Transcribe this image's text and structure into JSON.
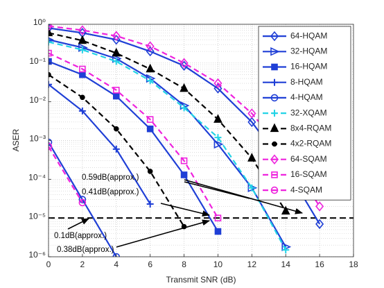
{
  "chart_data": {
    "type": "line",
    "x_label": "Transmit SNR (dB)",
    "y_label": "ASER",
    "log_y": true,
    "grid": true,
    "legend": "upper right",
    "x": [
      0,
      2,
      4,
      6,
      8,
      10,
      12,
      14,
      16
    ],
    "xlim": [
      0,
      18
    ],
    "xticks": [
      0,
      2,
      4,
      6,
      8,
      10,
      12,
      14,
      16,
      18
    ],
    "ylim": [
      1e-06,
      1
    ],
    "yticks": [
      {
        "value": 1e-06,
        "label": "10⁻⁶"
      },
      {
        "value": 1e-05,
        "label": "10⁻⁵"
      },
      {
        "value": 0.0001,
        "label": "10⁻⁴"
      },
      {
        "value": 0.001,
        "label": "10⁻³"
      },
      {
        "value": 0.01,
        "label": "10⁻²"
      },
      {
        "value": 0.1,
        "label": "10⁻¹"
      },
      {
        "value": 1,
        "label": "10⁰"
      }
    ],
    "reference_line": 1e-05,
    "series": [
      {
        "name": "64-HQAM",
        "color": "#1f3fd6",
        "dash": "solid",
        "marker": "diamond",
        "filled": false,
        "values": [
          0.8,
          0.6,
          0.4,
          0.2,
          0.085,
          0.022,
          0.003,
          0.0002,
          7e-06
        ]
      },
      {
        "name": "32-HQAM",
        "color": "#1f3fd6",
        "dash": "solid",
        "marker": "triangle-right",
        "filled": false,
        "values": [
          0.4,
          0.25,
          0.13,
          0.04,
          0.008,
          0.0008,
          6e-05,
          1.8e-06,
          null
        ]
      },
      {
        "name": "16-HQAM",
        "color": "#1f3fd6",
        "dash": "solid",
        "marker": "square",
        "filled": true,
        "values": [
          0.11,
          0.05,
          0.014,
          0.002,
          0.00013,
          4.5e-06,
          null,
          null,
          null
        ]
      },
      {
        "name": "8-HQAM",
        "color": "#1f3fd6",
        "dash": "solid",
        "marker": "plus",
        "filled": false,
        "values": [
          0.028,
          0.0058,
          0.0006,
          2.3e-05,
          null,
          null,
          null,
          null,
          null
        ]
      },
      {
        "name": "4-HQAM",
        "color": "#1f3fd6",
        "dash": "solid",
        "marker": "circle",
        "filled": false,
        "values": [
          0.0009,
          3e-05,
          1e-06,
          null,
          null,
          null,
          null,
          null,
          null
        ]
      },
      {
        "name": "32-XQAM",
        "color": "#22d3e6",
        "dash": "dashed",
        "marker": "plus",
        "filled": false,
        "values": [
          0.35,
          0.22,
          0.11,
          0.035,
          0.007,
          0.0012,
          6e-05,
          1.5e-06,
          null
        ]
      },
      {
        "name": "8x4-RQAM",
        "color": "#000000",
        "dash": "dashed",
        "marker": "triangle-up",
        "filled": true,
        "values": [
          0.6,
          0.38,
          0.18,
          0.07,
          0.022,
          0.0035,
          0.00035,
          1.5e-05,
          null
        ]
      },
      {
        "name": "4x2-RQAM",
        "color": "#000000",
        "dash": "dashed",
        "marker": "dot",
        "filled": true,
        "values": [
          0.05,
          0.013,
          0.002,
          0.00016,
          6e-06,
          null,
          null,
          null,
          null
        ]
      },
      {
        "name": "64-SQAM",
        "color": "#ee22dd",
        "dash": "dashed",
        "marker": "diamond",
        "filled": false,
        "values": [
          0.9,
          0.7,
          0.5,
          0.27,
          0.1,
          0.03,
          0.005,
          0.00045,
          2e-05
        ]
      },
      {
        "name": "16-SQAM",
        "color": "#ee22dd",
        "dash": "dashed",
        "marker": "square",
        "filled": false,
        "values": [
          0.18,
          0.07,
          0.02,
          0.0035,
          0.0003,
          1e-05,
          null,
          null,
          null
        ]
      },
      {
        "name": "4-SQAM",
        "color": "#ee22dd",
        "dash": "dashed",
        "marker": "circle",
        "filled": false,
        "values": [
          0.0007,
          2.5e-05,
          null,
          null,
          null,
          null,
          null,
          null,
          null
        ]
      }
    ],
    "annotations": [
      "0.59dB(approx.)",
      "0.41dB(approx.)",
      "0.1dB(approx.)",
      "0.38dB(approx.)"
    ]
  }
}
